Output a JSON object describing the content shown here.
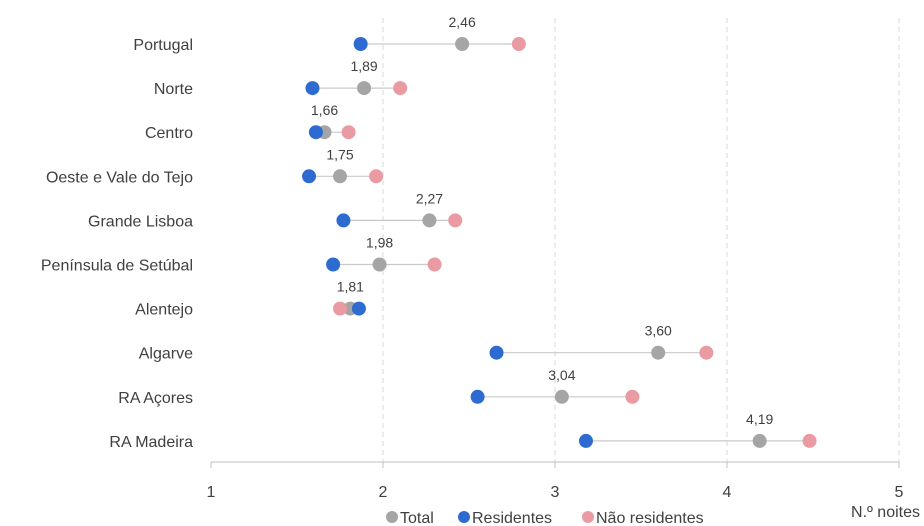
{
  "chart_data": {
    "type": "dumbbell",
    "xlabel": "N.º noites",
    "xlim": [
      1,
      5
    ],
    "x_ticks": [
      "1",
      "2",
      "3",
      "4",
      "5"
    ],
    "grid": "vertical dashed",
    "legend_position": "bottom",
    "categories": [
      "Portugal",
      "Norte",
      "Centro",
      "Oeste e Vale do  Tejo",
      "Grande Lisboa",
      "Península de Setúbal",
      "Alentejo",
      "Algarve",
      "RA Açores",
      "RA Madeira"
    ],
    "series": [
      {
        "name": "Total",
        "color": "#a5a5a5",
        "values": [
          2.46,
          1.89,
          1.66,
          1.75,
          2.27,
          1.98,
          1.81,
          3.6,
          3.04,
          4.19
        ],
        "labels": [
          "2,46",
          "1,89",
          "1,66",
          "1,75",
          "2,27",
          "1,98",
          "1,81",
          "3,60",
          "3,04",
          "4,19"
        ]
      },
      {
        "name": "Residentes",
        "color": "#2e6bd1",
        "values": [
          1.87,
          1.59,
          1.61,
          1.57,
          1.77,
          1.71,
          1.86,
          2.66,
          2.55,
          3.18
        ]
      },
      {
        "name": "Não residentes",
        "color": "#ea9aa2",
        "values": [
          2.79,
          2.1,
          1.8,
          1.96,
          2.42,
          2.3,
          1.75,
          3.88,
          3.45,
          4.48
        ]
      }
    ]
  }
}
